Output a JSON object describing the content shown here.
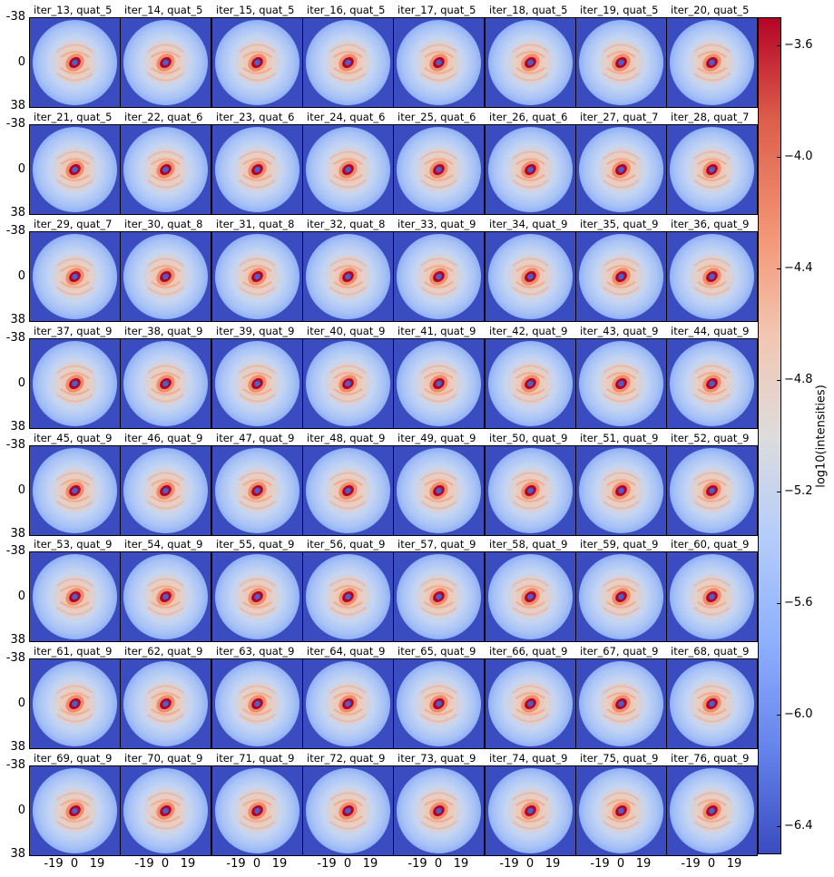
{
  "chart_data": {
    "type": "heatmap",
    "layout": "small-multiples grid",
    "rows": 8,
    "cols": 8,
    "panels": [
      "iter_13, quat_5",
      "iter_14, quat_5",
      "iter_15, quat_5",
      "iter_16, quat_5",
      "iter_17, quat_5",
      "iter_18, quat_5",
      "iter_19, quat_5",
      "iter_20, quat_5",
      "iter_21, quat_5",
      "iter_22, quat_6",
      "iter_23, quat_6",
      "iter_24, quat_6",
      "iter_25, quat_6",
      "iter_26, quat_6",
      "iter_27, quat_7",
      "iter_28, quat_7",
      "iter_29, quat_7",
      "iter_30, quat_8",
      "iter_31, quat_8",
      "iter_32, quat_8",
      "iter_33, quat_9",
      "iter_34, quat_9",
      "iter_35, quat_9",
      "iter_36, quat_9",
      "iter_37, quat_9",
      "iter_38, quat_9",
      "iter_39, quat_9",
      "iter_40, quat_9",
      "iter_41, quat_9",
      "iter_42, quat_9",
      "iter_43, quat_9",
      "iter_44, quat_9",
      "iter_45, quat_9",
      "iter_46, quat_9",
      "iter_47, quat_9",
      "iter_48, quat_9",
      "iter_49, quat_9",
      "iter_50, quat_9",
      "iter_51, quat_9",
      "iter_52, quat_9",
      "iter_53, quat_9",
      "iter_54, quat_9",
      "iter_55, quat_9",
      "iter_56, quat_9",
      "iter_57, quat_9",
      "iter_58, quat_9",
      "iter_59, quat_9",
      "iter_60, quat_9",
      "iter_61, quat_9",
      "iter_62, quat_9",
      "iter_63, quat_9",
      "iter_64, quat_9",
      "iter_65, quat_9",
      "iter_66, quat_9",
      "iter_67, quat_9",
      "iter_68, quat_9",
      "iter_69, quat_9",
      "iter_70, quat_9",
      "iter_71, quat_9",
      "iter_72, quat_9",
      "iter_73, quat_9",
      "iter_74, quat_9",
      "iter_75, quat_9",
      "iter_76, quat_9"
    ],
    "x_ticks": [
      "-19",
      "0",
      "19"
    ],
    "y_ticks": [
      "-38",
      "0",
      "38"
    ],
    "xlim": [
      -38,
      38
    ],
    "ylim": [
      -38,
      38
    ],
    "colorbar": {
      "label": "log10(intensities)",
      "ticks": [
        "−3.6",
        "−4.0",
        "−4.4",
        "−4.8",
        "−5.2",
        "−5.6",
        "−6.0",
        "−6.4"
      ],
      "tick_values": [
        -3.6,
        -4.0,
        -4.4,
        -4.8,
        -5.2,
        -5.6,
        -6.0,
        -6.4
      ],
      "range": [
        -6.5,
        -3.5
      ],
      "colormap": "coolwarm"
    },
    "colors": {
      "background_blue": "#3b4cc0",
      "pattern_light": "#bcd2f7",
      "ring_orange": "#f4a582",
      "core_red": "#b40426",
      "center_blue": "#4a5fd0"
    },
    "grid": false
  }
}
